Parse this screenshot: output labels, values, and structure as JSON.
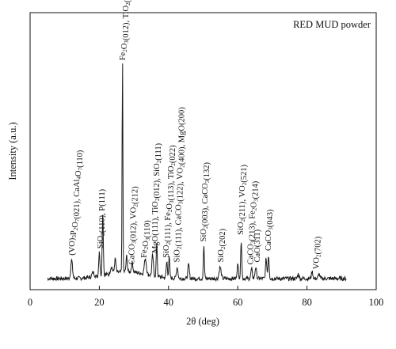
{
  "chart_data": {
    "type": "line",
    "title": "RED MUD powder",
    "xlabel": "2θ (deg)",
    "ylabel": "Intensity (a.u.)",
    "xlim": [
      0,
      100
    ],
    "x_ticks": [
      0,
      20,
      40,
      60,
      80,
      100
    ],
    "y_ticks_shown": false,
    "grid": false,
    "legend": "none",
    "line_color": "#1a1a1a",
    "baseline_relative": 0.04,
    "peaks": [
      {
        "x": 12.0,
        "h": 0.08,
        "w": 0.35
      },
      {
        "x": 18.2,
        "h": 0.02,
        "w": 0.5
      },
      {
        "x": 20.0,
        "h": 0.11,
        "w": 0.25
      },
      {
        "x": 21.0,
        "h": 0.28,
        "w": 0.22
      },
      {
        "x": 23.5,
        "h": 0.03,
        "w": 0.4
      },
      {
        "x": 24.6,
        "h": 0.06,
        "w": 0.3
      },
      {
        "x": 26.7,
        "h": 0.93,
        "w": 0.16
      },
      {
        "x": 27.9,
        "h": 0.07,
        "w": 0.25
      },
      {
        "x": 29.5,
        "h": 0.04,
        "w": 0.3
      },
      {
        "x": 33.3,
        "h": 0.07,
        "w": 0.4
      },
      {
        "x": 35.4,
        "h": 0.09,
        "w": 0.3
      },
      {
        "x": 36.6,
        "h": 0.14,
        "w": 0.22
      },
      {
        "x": 39.5,
        "h": 0.07,
        "w": 0.25
      },
      {
        "x": 40.2,
        "h": 0.09,
        "w": 0.22
      },
      {
        "x": 42.5,
        "h": 0.05,
        "w": 0.3
      },
      {
        "x": 45.8,
        "h": 0.06,
        "w": 0.3
      },
      {
        "x": 50.2,
        "h": 0.14,
        "w": 0.22
      },
      {
        "x": 54.9,
        "h": 0.05,
        "w": 0.4
      },
      {
        "x": 60.0,
        "h": 0.06,
        "w": 0.3
      },
      {
        "x": 61.0,
        "h": 0.17,
        "w": 0.22
      },
      {
        "x": 64.0,
        "h": 0.04,
        "w": 0.3
      },
      {
        "x": 65.2,
        "h": 0.05,
        "w": 0.3
      },
      {
        "x": 68.2,
        "h": 0.09,
        "w": 0.25
      },
      {
        "x": 68.9,
        "h": 0.1,
        "w": 0.25
      },
      {
        "x": 77.5,
        "h": 0.02,
        "w": 0.3
      },
      {
        "x": 81.5,
        "h": 0.03,
        "w": 0.3
      },
      {
        "x": 83.5,
        "h": 0.02,
        "w": 0.3
      }
    ],
    "annotations": [
      {
        "x": 12.0,
        "parts": [
          [
            "(VO)",
            ""
          ],
          [
            "3",
            "",
            " sub"
          ],
          [
            "P",
            ""
          ],
          [
            "2",
            "",
            " sub"
          ],
          [
            "O",
            ""
          ],
          [
            "7",
            "",
            " sub"
          ],
          [
            "(021), CaAl",
            ""
          ],
          [
            "4",
            "",
            " sub"
          ],
          [
            "O",
            ""
          ],
          [
            "7",
            "",
            " sub"
          ],
          [
            "(110)",
            ""
          ]
        ],
        "text": "(VO)3P2O7(021), CaAl4O7(110)"
      },
      {
        "x": 20.3,
        "parts": [
          [
            "SiO",
            ""
          ],
          [
            "2",
            "",
            " sub"
          ],
          [
            "(110), P(111)",
            ""
          ]
        ],
        "text": "SiO2(110), P(111)"
      },
      {
        "x": 26.7,
        "parts": [
          [
            "Fe",
            ""
          ],
          [
            "2",
            "",
            " sub"
          ],
          [
            "O",
            ""
          ],
          [
            "3",
            "",
            " sub"
          ],
          [
            "(012), TiO",
            ""
          ],
          [
            "2",
            "",
            " sub"
          ],
          [
            "(120)",
            ""
          ]
        ],
        "text": "Fe2O3(012), TiO2(120)"
      },
      {
        "x": 29.3,
        "parts": [
          [
            "CaCO",
            ""
          ],
          [
            "3",
            "",
            " sub"
          ],
          [
            "(012), VO",
            ""
          ],
          [
            "2",
            "",
            " sub"
          ],
          [
            "(212)",
            ""
          ]
        ],
        "text": "CaCO3(012), VO2(212)"
      },
      {
        "x": 32.8,
        "parts": [
          [
            "Fe",
            ""
          ],
          [
            "2",
            "",
            " sub"
          ],
          [
            "O",
            ""
          ],
          [
            "3",
            "",
            " sub"
          ],
          [
            "(110)",
            ""
          ]
        ],
        "text": "Fe2O3(110)"
      },
      {
        "x": 36.0,
        "parts": [
          [
            "MgO(111), TiO",
            ""
          ],
          [
            "2",
            "",
            " sub"
          ],
          [
            "(012), SiO",
            ""
          ],
          [
            "2",
            "",
            " sub"
          ],
          [
            "(111)",
            ""
          ]
        ],
        "text": "MgO(111), TiO2(012), SiO2(111)"
      },
      {
        "x": 39.3,
        "parts": [
          [
            "SiO",
            ""
          ],
          [
            "2",
            "",
            " sub"
          ],
          [
            "(111), Fe",
            ""
          ],
          [
            "2",
            "",
            " sub"
          ],
          [
            "O",
            ""
          ],
          [
            "3",
            "",
            " sub"
          ],
          [
            "(113), TiO",
            ""
          ],
          [
            "2",
            "",
            " sub"
          ],
          [
            "(022)",
            ""
          ]
        ],
        "text": "SiO2(111), Fe2O3(113), TiO2(022)"
      },
      {
        "x": 42.3,
        "parts": [
          [
            "SiO",
            ""
          ],
          [
            "2",
            "",
            " sub"
          ],
          [
            "(111), CaCO",
            ""
          ],
          [
            "3",
            "",
            " sub"
          ],
          [
            "(122), VO",
            ""
          ],
          [
            "2",
            "",
            " sub"
          ],
          [
            "(400), MgO(200)",
            ""
          ]
        ],
        "text": "SiO2(111), CaCO3(122), VO2(400), MgO(200)"
      },
      {
        "x": 50.0,
        "parts": [
          [
            "SiO",
            ""
          ],
          [
            "2",
            "",
            " sub"
          ],
          [
            "(003), CaCO",
            ""
          ],
          [
            "3",
            "",
            " sub"
          ],
          [
            "(132)",
            ""
          ]
        ],
        "text": "SiO2(003), CaCO3(132)"
      },
      {
        "x": 55.0,
        "parts": [
          [
            "SiO",
            ""
          ],
          [
            "2",
            "",
            " sub"
          ],
          [
            "(202)",
            ""
          ]
        ],
        "text": "SiO2(202)"
      },
      {
        "x": 60.8,
        "parts": [
          [
            "SiO",
            ""
          ],
          [
            "2",
            "",
            " sub"
          ],
          [
            "(211), VO",
            ""
          ],
          [
            "2",
            "",
            " sub"
          ],
          [
            "(521)",
            ""
          ]
        ],
        "text": "SiO2(211), VO2(521)"
      },
      {
        "x": 63.6,
        "parts": [
          [
            "CaCO",
            ""
          ],
          [
            "3",
            "",
            " sub"
          ],
          [
            "(213), Fe",
            ""
          ],
          [
            "2",
            "",
            " sub"
          ],
          [
            "O",
            ""
          ],
          [
            "3",
            "",
            " sub"
          ],
          [
            "(214)",
            ""
          ]
        ],
        "text": "CaCO3(213), Fe2O3(214)"
      },
      {
        "x": 65.6,
        "parts": [
          [
            "CaO(311)",
            ""
          ]
        ],
        "text": "CaO(311)"
      },
      {
        "x": 68.8,
        "parts": [
          [
            "CaCO",
            ""
          ],
          [
            "3",
            "",
            " sub"
          ],
          [
            "(043)",
            ""
          ]
        ],
        "text": "CaCO3(043)"
      },
      {
        "x": 82.6,
        "parts": [
          [
            "VO",
            ""
          ],
          [
            "2",
            "",
            " sub"
          ],
          [
            "(702)",
            ""
          ]
        ],
        "text": "VO2(702)"
      }
    ]
  }
}
